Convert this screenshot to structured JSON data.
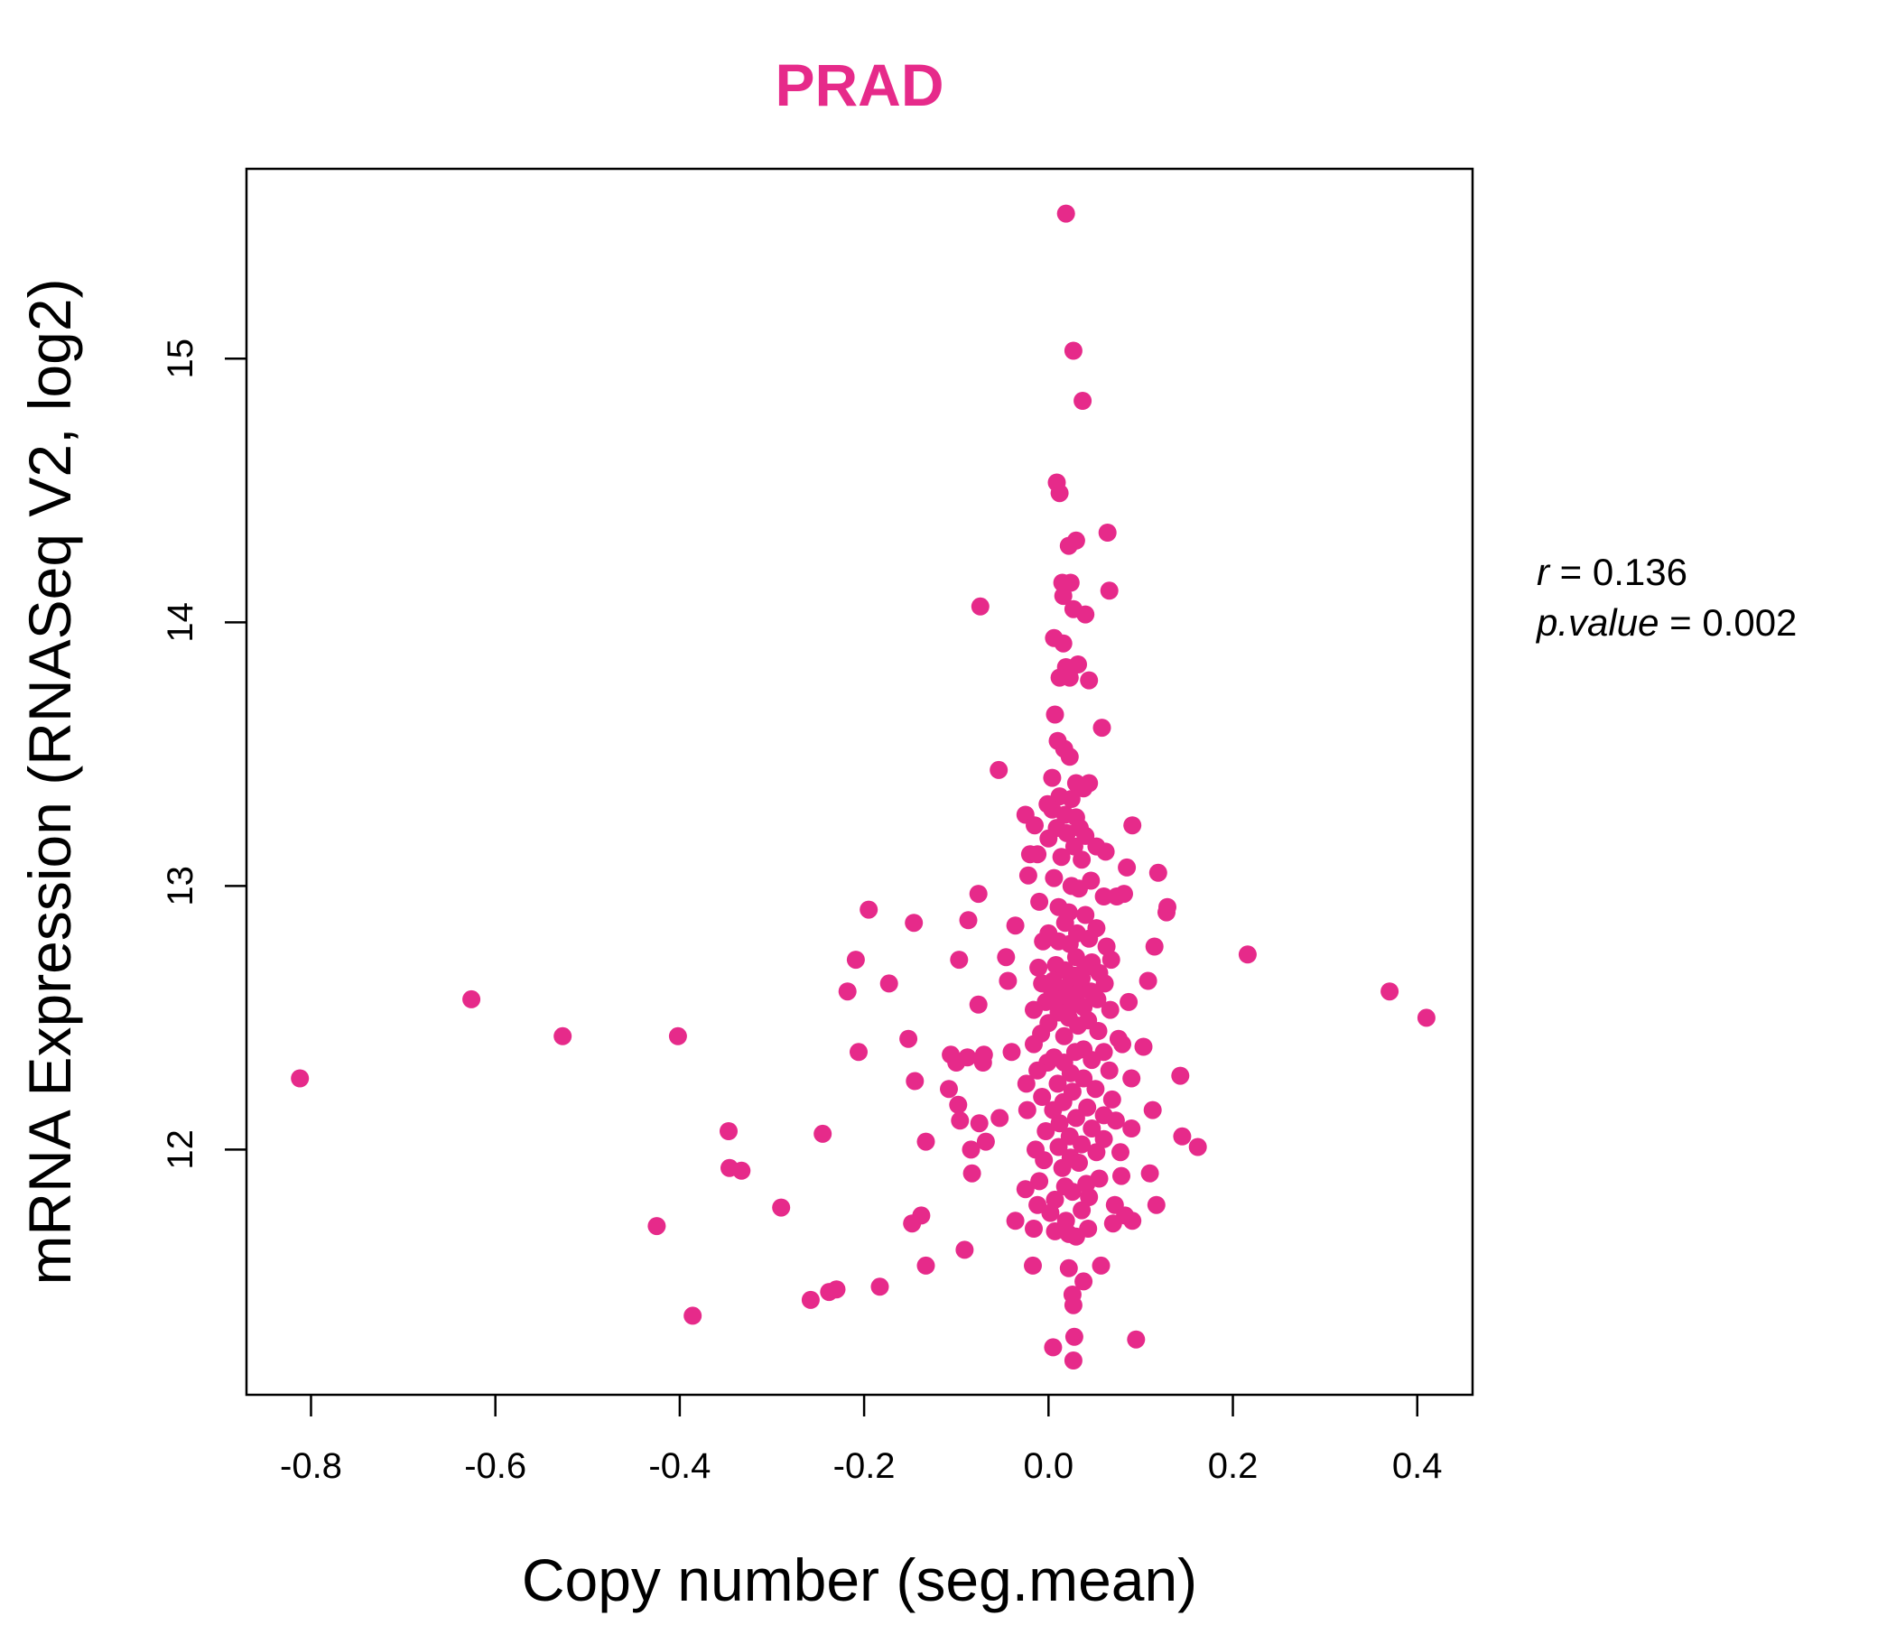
{
  "chart_data": {
    "type": "scatter",
    "title": "PRAD",
    "xlabel": "Copy number (seg.mean)",
    "ylabel": "mRNA Expression (RNASeq V2, log2)",
    "xlim": [
      -0.87,
      0.46
    ],
    "ylim": [
      11.07,
      15.72
    ],
    "xticks": [
      -0.8,
      -0.6,
      -0.4,
      -0.2,
      0.0,
      0.2,
      0.4
    ],
    "xtick_labels": [
      "-0.8",
      "-0.6",
      "-0.4",
      "-0.2",
      "0.0",
      "0.2",
      "0.4"
    ],
    "yticks": [
      12,
      13,
      14,
      15
    ],
    "ytick_labels": [
      "12",
      "13",
      "14",
      "15"
    ],
    "grid": false,
    "point_color": "#e62a8a",
    "stats": {
      "r_symbol": "r",
      "r_value": "0.136",
      "p_symbol": "p.value",
      "p_value": "0.002"
    },
    "series": [
      {
        "points": [
          [
            0.019,
            15.55
          ],
          [
            0.027,
            15.03
          ],
          [
            0.037,
            14.84
          ],
          [
            0.009,
            14.53
          ],
          [
            0.012,
            14.49
          ],
          [
            0.064,
            14.34
          ],
          [
            0.03,
            14.31
          ],
          [
            0.022,
            14.29
          ],
          [
            0.015,
            14.15
          ],
          [
            0.024,
            14.15
          ],
          [
            0.066,
            14.12
          ],
          [
            0.016,
            14.1
          ],
          [
            0.027,
            14.05
          ],
          [
            0.04,
            14.03
          ],
          [
            -0.074,
            14.06
          ],
          [
            0.006,
            13.94
          ],
          [
            0.016,
            13.92
          ],
          [
            0.032,
            13.84
          ],
          [
            0.019,
            13.83
          ],
          [
            0.012,
            13.79
          ],
          [
            0.023,
            13.79
          ],
          [
            0.044,
            13.78
          ],
          [
            0.007,
            13.65
          ],
          [
            0.058,
            13.6
          ],
          [
            0.01,
            13.55
          ],
          [
            0.017,
            13.52
          ],
          [
            0.023,
            13.49
          ],
          [
            -0.054,
            13.44
          ],
          [
            0.004,
            13.41
          ],
          [
            0.03,
            13.39
          ],
          [
            0.044,
            13.39
          ],
          [
            0.038,
            13.37
          ],
          [
            0.012,
            13.34
          ],
          [
            0.025,
            13.33
          ],
          [
            -0.001,
            13.31
          ],
          [
            0.004,
            13.29
          ],
          [
            0.018,
            13.27
          ],
          [
            0.03,
            13.26
          ],
          [
            -0.025,
            13.27
          ],
          [
            -0.015,
            13.23
          ],
          [
            0.009,
            13.22
          ],
          [
            0.091,
            13.23
          ],
          [
            0.034,
            13.22
          ],
          [
            0.02,
            13.2
          ],
          [
            0.04,
            13.19
          ],
          [
            0.0,
            13.18
          ],
          [
            0.028,
            13.15
          ],
          [
            0.052,
            13.15
          ],
          [
            0.062,
            13.13
          ],
          [
            -0.02,
            13.12
          ],
          [
            -0.012,
            13.12
          ],
          [
            0.014,
            13.11
          ],
          [
            0.036,
            13.1
          ],
          [
            0.085,
            13.07
          ],
          [
            0.119,
            13.05
          ],
          [
            -0.022,
            13.04
          ],
          [
            0.006,
            13.03
          ],
          [
            0.046,
            13.02
          ],
          [
            0.025,
            13.0
          ],
          [
            0.033,
            12.99
          ],
          [
            0.082,
            12.97
          ],
          [
            -0.076,
            12.97
          ],
          [
            0.06,
            12.96
          ],
          [
            0.074,
            12.96
          ],
          [
            -0.01,
            12.94
          ],
          [
            0.011,
            12.92
          ],
          [
            0.129,
            12.92
          ],
          [
            0.128,
            12.9
          ],
          [
            -0.195,
            12.91
          ],
          [
            0.022,
            12.9
          ],
          [
            0.04,
            12.89
          ],
          [
            -0.146,
            12.86
          ],
          [
            -0.087,
            12.87
          ],
          [
            -0.036,
            12.85
          ],
          [
            0.018,
            12.86
          ],
          [
            0.052,
            12.84
          ],
          [
            0.0,
            12.82
          ],
          [
            0.031,
            12.82
          ],
          [
            0.044,
            12.8
          ],
          [
            -0.006,
            12.79
          ],
          [
            0.011,
            12.79
          ],
          [
            0.023,
            12.78
          ],
          [
            0.063,
            12.77
          ],
          [
            0.115,
            12.77
          ],
          [
            0.216,
            12.74
          ],
          [
            -0.046,
            12.73
          ],
          [
            -0.097,
            12.72
          ],
          [
            -0.209,
            12.72
          ],
          [
            0.03,
            12.73
          ],
          [
            0.047,
            12.71
          ],
          [
            0.068,
            12.72
          ],
          [
            0.008,
            12.7
          ],
          [
            0.04,
            12.69
          ],
          [
            -0.011,
            12.69
          ],
          [
            0.018,
            12.68
          ],
          [
            0.055,
            12.67
          ],
          [
            0.028,
            12.66
          ],
          [
            0.036,
            12.65
          ],
          [
            -0.044,
            12.64
          ],
          [
            0.005,
            12.64
          ],
          [
            -0.007,
            12.63
          ],
          [
            0.021,
            12.62
          ],
          [
            0.061,
            12.63
          ],
          [
            0.108,
            12.64
          ],
          [
            -0.173,
            12.63
          ],
          [
            0.019,
            12.61
          ],
          [
            0.046,
            12.6
          ],
          [
            0.004,
            12.6
          ],
          [
            0.031,
            12.59
          ],
          [
            -0.218,
            12.6
          ],
          [
            0.37,
            12.6
          ],
          [
            -0.626,
            12.57
          ],
          [
            0.087,
            12.56
          ],
          [
            0.053,
            12.57
          ],
          [
            0.014,
            12.57
          ],
          [
            -0.003,
            12.56
          ],
          [
            0.026,
            12.55
          ],
          [
            0.038,
            12.54
          ],
          [
            -0.076,
            12.55
          ],
          [
            0.067,
            12.53
          ],
          [
            -0.016,
            12.53
          ],
          [
            0.011,
            12.52
          ],
          [
            0.41,
            12.5
          ],
          [
            0.022,
            12.5
          ],
          [
            0.043,
            12.49
          ],
          [
            0.0,
            12.48
          ],
          [
            0.032,
            12.47
          ],
          [
            0.054,
            12.45
          ],
          [
            -0.008,
            12.44
          ],
          [
            -0.527,
            12.43
          ],
          [
            -0.402,
            12.43
          ],
          [
            -0.152,
            12.42
          ],
          [
            0.017,
            12.43
          ],
          [
            0.076,
            12.42
          ],
          [
            0.08,
            12.4
          ],
          [
            0.103,
            12.39
          ],
          [
            -0.016,
            12.4
          ],
          [
            0.038,
            12.38
          ],
          [
            0.06,
            12.37
          ],
          [
            -0.04,
            12.37
          ],
          [
            0.029,
            12.37
          ],
          [
            0.006,
            12.35
          ],
          [
            -0.106,
            12.36
          ],
          [
            -0.206,
            12.37
          ],
          [
            -0.07,
            12.36
          ],
          [
            -0.088,
            12.35
          ],
          [
            0.047,
            12.34
          ],
          [
            -0.001,
            12.33
          ],
          [
            0.017,
            12.33
          ],
          [
            -0.1,
            12.33
          ],
          [
            -0.071,
            12.33
          ],
          [
            0.066,
            12.3
          ],
          [
            -0.012,
            12.3
          ],
          [
            0.024,
            12.29
          ],
          [
            0.143,
            12.28
          ],
          [
            0.09,
            12.27
          ],
          [
            -0.812,
            12.27
          ],
          [
            0.038,
            12.27
          ],
          [
            0.01,
            12.25
          ],
          [
            -0.024,
            12.25
          ],
          [
            -0.145,
            12.26
          ],
          [
            0.051,
            12.23
          ],
          [
            -0.108,
            12.23
          ],
          [
            0.026,
            12.22
          ],
          [
            -0.007,
            12.2
          ],
          [
            0.069,
            12.19
          ],
          [
            0.016,
            12.18
          ],
          [
            -0.098,
            12.17
          ],
          [
            0.042,
            12.16
          ],
          [
            -0.023,
            12.15
          ],
          [
            0.005,
            12.15
          ],
          [
            0.113,
            12.15
          ],
          [
            0.06,
            12.13
          ],
          [
            0.03,
            12.12
          ],
          [
            -0.053,
            12.12
          ],
          [
            -0.096,
            12.11
          ],
          [
            0.073,
            12.11
          ],
          [
            0.012,
            12.1
          ],
          [
            -0.075,
            12.1
          ],
          [
            0.047,
            12.08
          ],
          [
            0.09,
            12.08
          ],
          [
            -0.003,
            12.07
          ],
          [
            -0.347,
            12.07
          ],
          [
            -0.245,
            12.06
          ],
          [
            0.145,
            12.05
          ],
          [
            0.023,
            12.05
          ],
          [
            0.06,
            12.04
          ],
          [
            -0.133,
            12.03
          ],
          [
            -0.068,
            12.03
          ],
          [
            0.036,
            12.02
          ],
          [
            0.011,
            12.01
          ],
          [
            0.162,
            12.01
          ],
          [
            -0.014,
            12.0
          ],
          [
            -0.084,
            12.0
          ],
          [
            0.052,
            11.99
          ],
          [
            0.078,
            11.99
          ],
          [
            0.024,
            11.97
          ],
          [
            -0.005,
            11.96
          ],
          [
            0.033,
            11.95
          ],
          [
            -0.346,
            11.93
          ],
          [
            -0.333,
            11.92
          ],
          [
            0.015,
            11.93
          ],
          [
            0.11,
            11.91
          ],
          [
            -0.083,
            11.91
          ],
          [
            0.079,
            11.9
          ],
          [
            0.055,
            11.89
          ],
          [
            -0.01,
            11.88
          ],
          [
            0.041,
            11.87
          ],
          [
            0.018,
            11.86
          ],
          [
            -0.025,
            11.85
          ],
          [
            0.026,
            11.84
          ],
          [
            0.044,
            11.82
          ],
          [
            0.007,
            11.81
          ],
          [
            0.072,
            11.79
          ],
          [
            -0.012,
            11.79
          ],
          [
            0.117,
            11.79
          ],
          [
            -0.29,
            11.78
          ],
          [
            0.036,
            11.77
          ],
          [
            0.002,
            11.76
          ],
          [
            -0.138,
            11.75
          ],
          [
            0.083,
            11.75
          ],
          [
            -0.036,
            11.73
          ],
          [
            0.019,
            11.73
          ],
          [
            0.091,
            11.73
          ],
          [
            0.07,
            11.72
          ],
          [
            -0.148,
            11.72
          ],
          [
            -0.425,
            11.71
          ],
          [
            0.043,
            11.7
          ],
          [
            -0.016,
            11.7
          ],
          [
            0.007,
            11.69
          ],
          [
            0.03,
            11.67
          ],
          [
            0.022,
            11.68
          ],
          [
            -0.091,
            11.62
          ],
          [
            -0.133,
            11.56
          ],
          [
            0.057,
            11.56
          ],
          [
            -0.017,
            11.56
          ],
          [
            0.022,
            11.55
          ],
          [
            0.038,
            11.5
          ],
          [
            -0.183,
            11.48
          ],
          [
            -0.23,
            11.47
          ],
          [
            -0.238,
            11.46
          ],
          [
            0.026,
            11.45
          ],
          [
            -0.258,
            11.43
          ],
          [
            0.027,
            11.41
          ],
          [
            -0.386,
            11.37
          ],
          [
            0.095,
            11.28
          ],
          [
            0.028,
            11.29
          ],
          [
            0.005,
            11.25
          ],
          [
            0.027,
            11.2
          ]
        ]
      }
    ]
  }
}
